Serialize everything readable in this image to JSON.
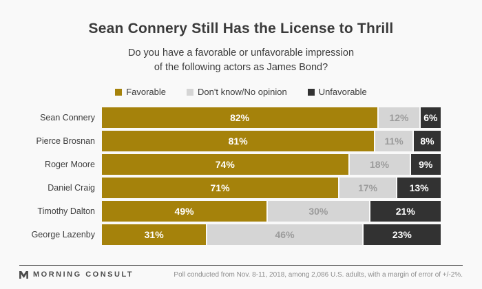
{
  "title": "Sean Connery Still Has the License to Thrill",
  "subtitle_line1": "Do you have a favorable or unfavorable impression",
  "subtitle_line2": "of the following actors as James Bond?",
  "colors": {
    "background": "#f9f9f9",
    "favorable": "#a5820b",
    "dont_know": "#d5d5d5",
    "unfavorable": "#323232",
    "bar_text_light": "#ffffff",
    "bar_text_gray": "#9b9b9b",
    "heading_text": "#3b3b3b",
    "divider": "#3a3a3a"
  },
  "legend": [
    {
      "label": "Favorable",
      "color": "#a5820b"
    },
    {
      "label": "Don't know/No opinion",
      "color": "#d5d5d5"
    },
    {
      "label": "Unfavorable",
      "color": "#323232"
    }
  ],
  "chart_data": {
    "type": "bar",
    "orientation": "horizontal_stacked",
    "title": "Sean Connery Still Has the License to Thrill",
    "categories": [
      "Sean Connery",
      "Pierce Brosnan",
      "Roger Moore",
      "Daniel Craig",
      "Timothy Dalton",
      "George Lazenby"
    ],
    "series": [
      {
        "name": "Favorable",
        "color": "#a5820b",
        "text_color": "#ffffff",
        "values": [
          82,
          81,
          74,
          71,
          49,
          31
        ]
      },
      {
        "name": "Don't know/No opinion",
        "color": "#d5d5d5",
        "text_color": "#9b9b9b",
        "values": [
          12,
          11,
          18,
          17,
          30,
          46
        ]
      },
      {
        "name": "Unfavorable",
        "color": "#323232",
        "text_color": "#ffffff",
        "values": [
          6,
          8,
          9,
          13,
          21,
          23
        ]
      }
    ],
    "value_suffix": "%",
    "xlim": [
      0,
      100
    ],
    "legend_position": "top",
    "grid": false
  },
  "footer": {
    "brand": "MORNING CONSULT",
    "source": "Poll conducted from Nov. 8-11, 2018, among 2,086 U.S. adults, with a margin of error of +/-2%."
  }
}
